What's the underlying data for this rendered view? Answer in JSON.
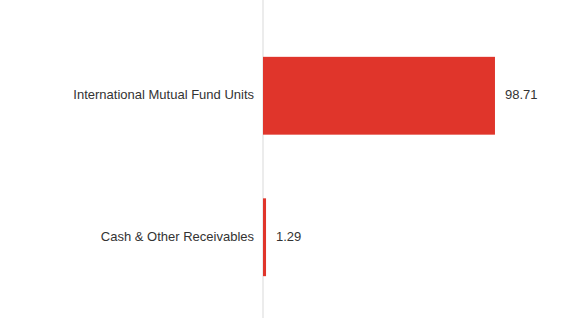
{
  "chart_data": {
    "type": "bar",
    "orientation": "horizontal",
    "categories": [
      "International Mutual Fund Units",
      "Cash & Other Receivables"
    ],
    "values": [
      98.71,
      1.29
    ],
    "color": "#e0352b",
    "xlim": [
      0,
      100
    ],
    "data_labels": true
  }
}
